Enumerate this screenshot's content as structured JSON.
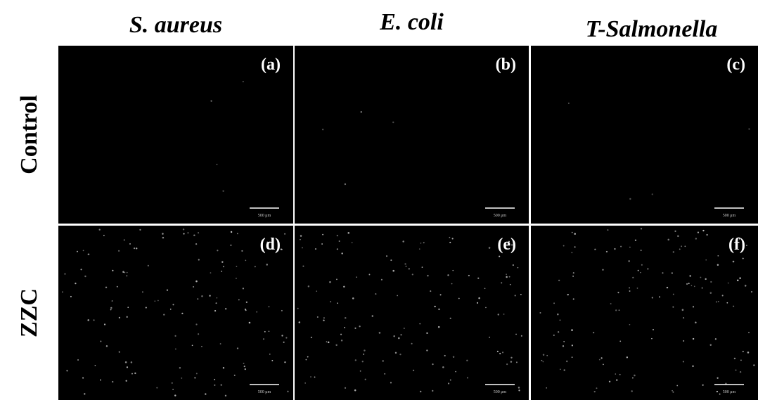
{
  "columns": [
    "S. aureus",
    "E. coli",
    "T-Salmonella"
  ],
  "rows": [
    "Control",
    "ZZC"
  ],
  "panels": [
    {
      "label": "(a)",
      "scale_bar": "500 μm"
    },
    {
      "label": "(b)",
      "scale_bar": "500 μm"
    },
    {
      "label": "(c)",
      "scale_bar": "500 μm"
    },
    {
      "label": "(d)",
      "scale_bar": "500 μm"
    },
    {
      "label": "(e)",
      "scale_bar": "500 μm"
    },
    {
      "label": "(f)",
      "scale_bar": "500 μm"
    }
  ]
}
